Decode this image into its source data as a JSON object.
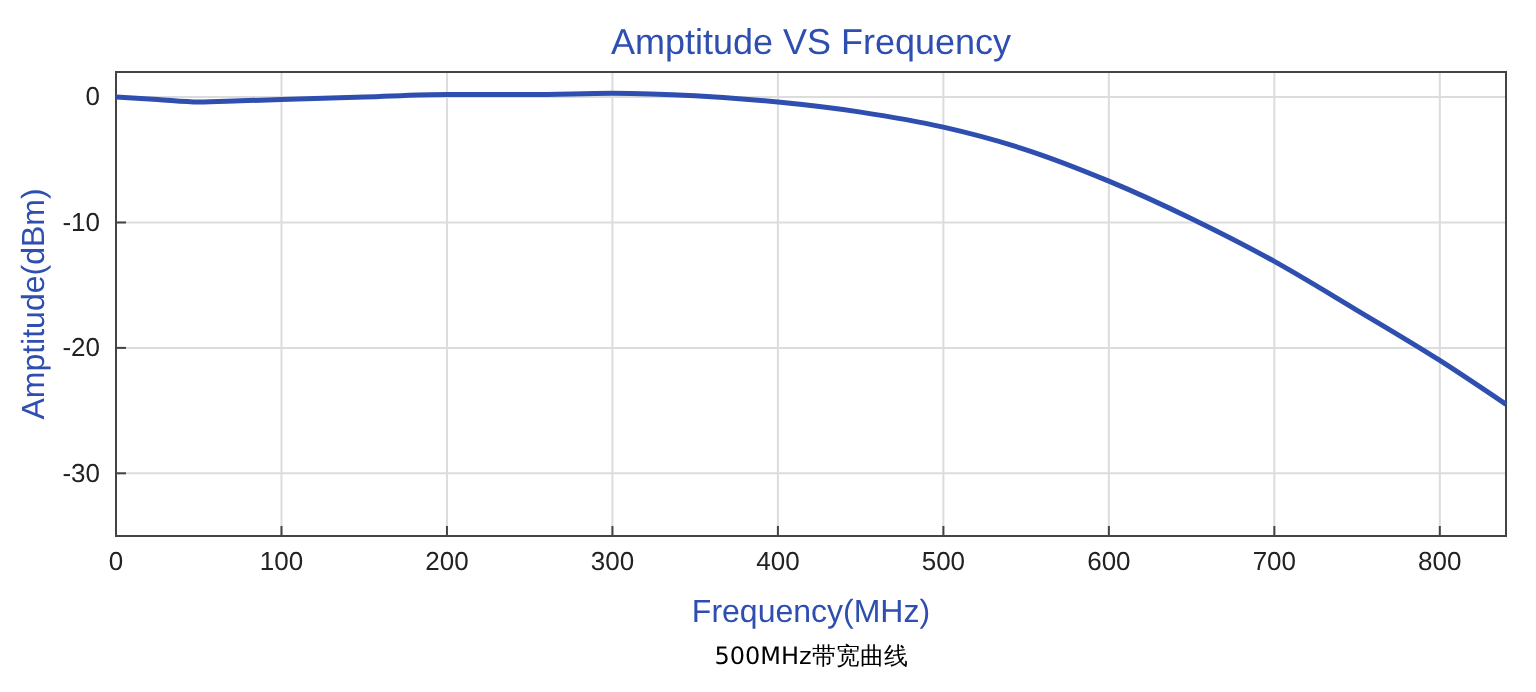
{
  "chart_data": {
    "type": "line",
    "title": "Amptitude VS Frequency",
    "xlabel": "Frequency(MHz)",
    "ylabel": "Amptitude(dBm)",
    "annotations": [
      "500MHz带宽曲线"
    ],
    "x": [
      0,
      25,
      50,
      75,
      100,
      150,
      200,
      250,
      300,
      350,
      400,
      450,
      500,
      550,
      600,
      650,
      700,
      750,
      800,
      840
    ],
    "series": [
      {
        "color": "#2f4fb0",
        "values": [
          0,
          -0.2,
          -0.4,
          -0.3,
          -0.2,
          0,
          0.2,
          0.2,
          0.3,
          0.1,
          -0.4,
          -1.2,
          -2.4,
          -4.2,
          -6.7,
          -9.7,
          -13.1,
          -17,
          -21,
          -24.5
        ]
      }
    ],
    "xlim": [
      0,
      840
    ],
    "xticks": [
      0,
      100,
      200,
      300,
      400,
      500,
      600,
      700,
      800
    ],
    "ylim": [
      -35,
      2
    ],
    "yticks": [
      -30,
      -20,
      -10,
      0
    ],
    "grid": true,
    "marker": "none",
    "line_style": "solid"
  }
}
